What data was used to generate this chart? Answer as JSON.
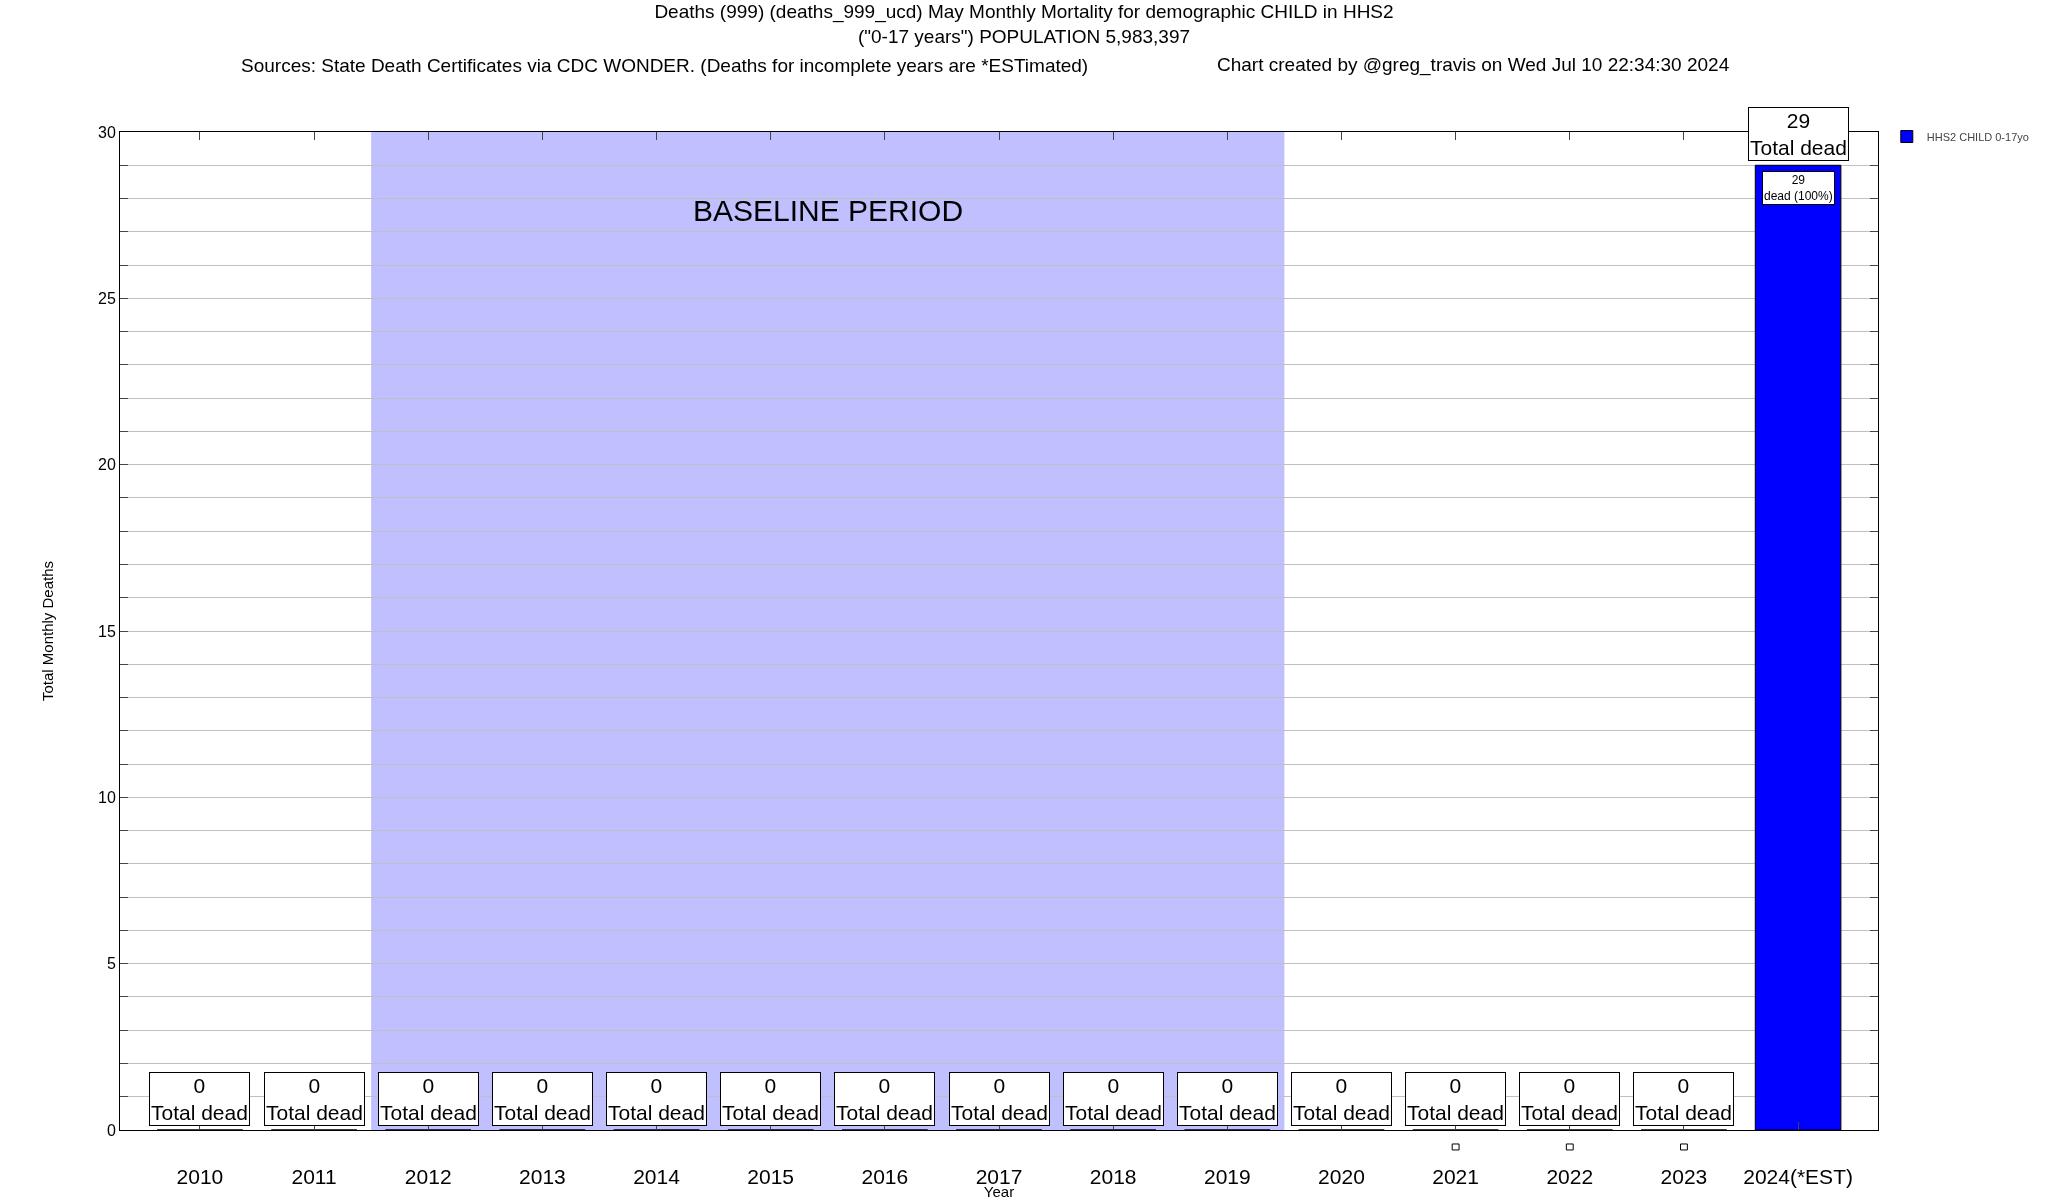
{
  "chart_data": {
    "type": "bar",
    "title": "Deaths (999) (deaths_999_ucd) May Monthly Mortality for demographic CHILD in HHS2",
    "subtitle": "(\"0-17 years\") POPULATION 5,983,397",
    "annotations": [
      "Sources: State Death Certificates via CDC WONDER. (Deaths for incomplete years are *ESTimated)",
      "Chart created by @greg_travis on Wed Jul 10 22:34:30 2024",
      "29\ndead (100%)"
    ],
    "xlabel": "Year",
    "ylabel": "Total Monthly Deaths",
    "categories": [
      "2010",
      "2011",
      "2012",
      "2013",
      "2014",
      "2015",
      "2016",
      "2017",
      "2018",
      "2019",
      "2020",
      "2021",
      "2022",
      "2023",
      "2024(*EST)"
    ],
    "series": [
      {
        "name": "HHS2 CHILD 0-17yo",
        "color": "#0000ff",
        "values": [
          0,
          0,
          0,
          0,
          0,
          0,
          0,
          0,
          0,
          0,
          0,
          0,
          0,
          0,
          29
        ],
        "value_labels": [
          "0\nTotal dead",
          "0\nTotal dead",
          "0\nTotal dead",
          "0\nTotal dead",
          "0\nTotal dead",
          "0\nTotal dead",
          "0\nTotal dead",
          "0\nTotal dead",
          "0\nTotal dead",
          "0\nTotal dead",
          "0\nTotal dead",
          "0\nTotal dead",
          "0\nTotal dead",
          "0\nTotal dead",
          "29\nTotal dead"
        ]
      }
    ],
    "ylim": [
      0,
      30
    ],
    "yticks": [
      0,
      {
        "value": 1,
        "label": null
      },
      {
        "value": 2,
        "label": null
      },
      {
        "value": 3,
        "label": null
      },
      {
        "value": 4,
        "label": null
      },
      5,
      {
        "value": 6,
        "label": null
      },
      {
        "value": 7,
        "label": null
      },
      {
        "value": 8,
        "label": null
      },
      {
        "value": 9,
        "label": null
      },
      10,
      {
        "value": 11,
        "label": null
      },
      {
        "value": 12,
        "label": null
      },
      {
        "value": 13,
        "label": null
      },
      {
        "value": 14,
        "label": null
      },
      15,
      {
        "value": 16,
        "label": null
      },
      {
        "value": 17,
        "label": null
      },
      {
        "value": 18,
        "label": null
      },
      {
        "value": 19,
        "label": null
      },
      20,
      {
        "value": 21,
        "label": null
      },
      {
        "value": 22,
        "label": null
      },
      {
        "value": 23,
        "label": null
      },
      {
        "value": 24,
        "label": null
      },
      25,
      {
        "value": 26,
        "label": null
      },
      {
        "value": 27,
        "label": null
      },
      {
        "value": 28,
        "label": null
      },
      {
        "value": 29,
        "label": null
      },
      30
    ],
    "bands": [
      {
        "axis": "x",
        "from": "2012",
        "to": "2019",
        "label": "BASELINE PERIOD",
        "color": "#c0c0ff"
      }
    ],
    "grid": "y",
    "legend": "top right"
  }
}
